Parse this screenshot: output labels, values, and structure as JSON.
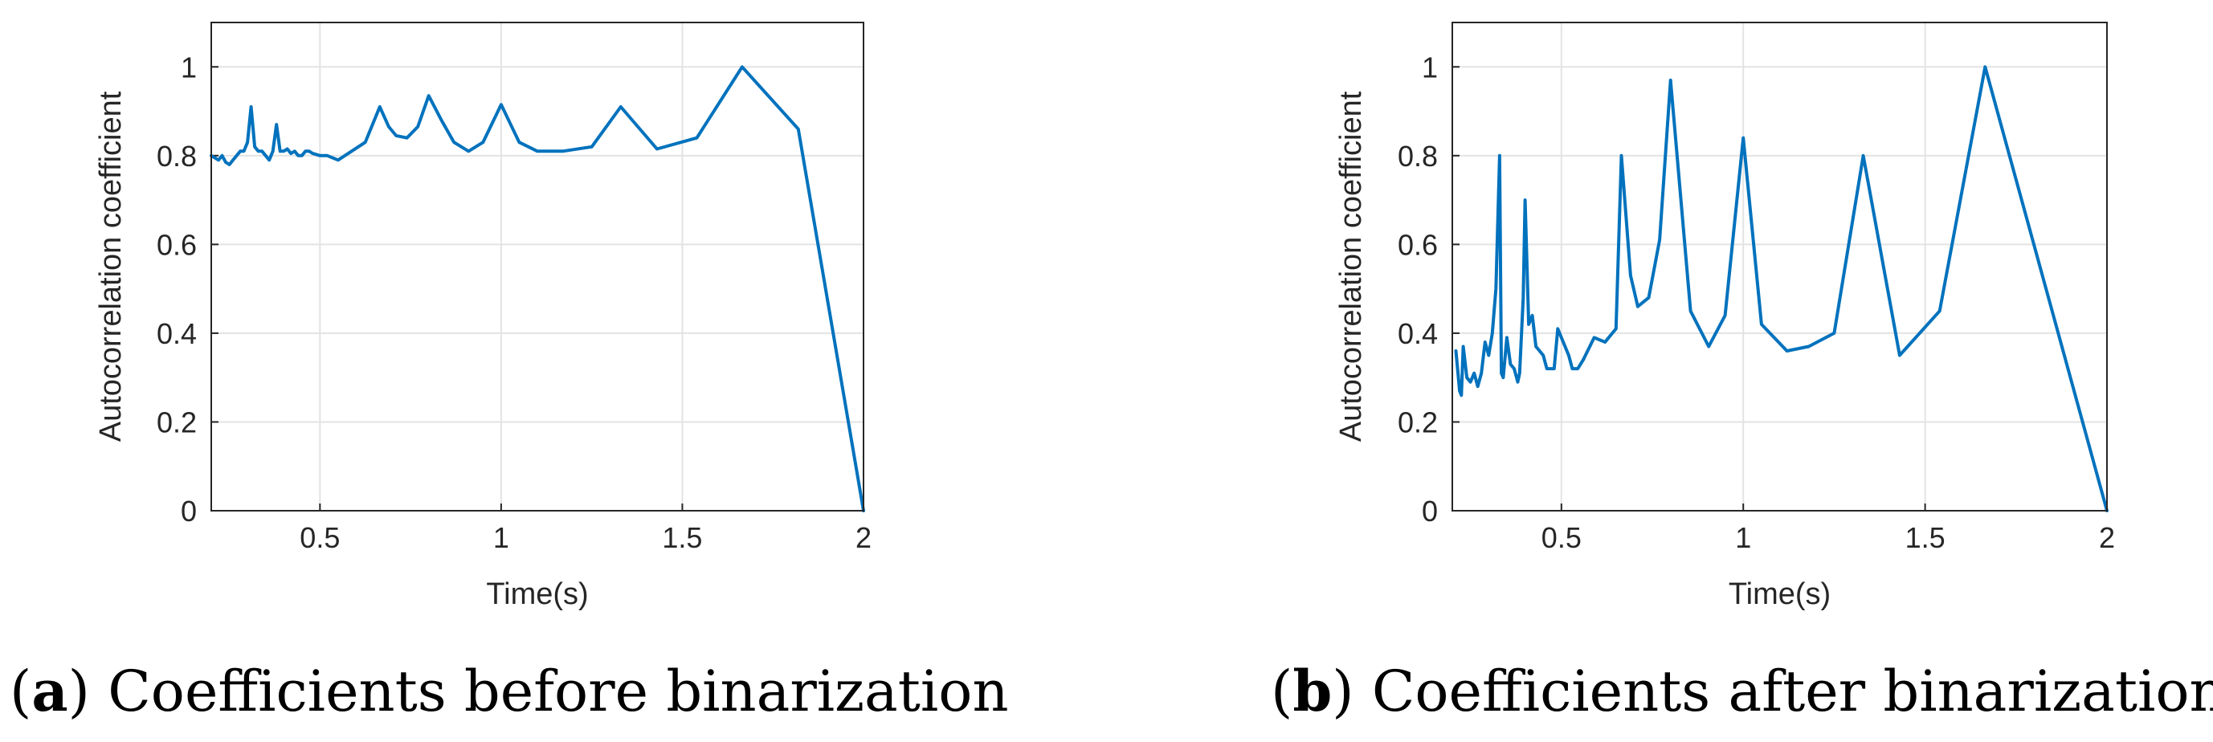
{
  "chart_data": [
    {
      "type": "line",
      "panel_letter": "a",
      "caption": "Coefficients before binarization",
      "xlabel": "Time(s)",
      "ylabel": "Autocorrelation coefficient",
      "xlim": [
        0.2,
        2.0
      ],
      "ylim": [
        0,
        1.1
      ],
      "xticks": [
        0.5,
        1,
        1.5,
        2
      ],
      "xtick_labels": [
        "0.5",
        "1",
        "1.5",
        "2"
      ],
      "yticks": [
        0,
        0.2,
        0.4,
        0.6,
        0.8,
        1
      ],
      "ytick_labels": [
        "0",
        "0.2",
        "0.4",
        "0.6",
        "0.8",
        "1"
      ],
      "grid": true,
      "line_color": "#0072BD",
      "series": [
        {
          "name": "autocorrelation",
          "x": [
            0.2,
            0.22,
            0.23,
            0.24,
            0.25,
            0.26,
            0.27,
            0.28,
            0.29,
            0.3,
            0.31,
            0.32,
            0.33,
            0.34,
            0.35,
            0.36,
            0.37,
            0.38,
            0.39,
            0.4,
            0.41,
            0.42,
            0.43,
            0.44,
            0.45,
            0.46,
            0.47,
            0.48,
            0.5,
            0.52,
            0.55,
            0.625,
            0.665,
            0.69,
            0.71,
            0.74,
            0.77,
            0.8,
            0.835,
            0.87,
            0.91,
            0.95,
            1.0,
            1.05,
            1.1,
            1.17,
            1.25,
            1.33,
            1.43,
            1.54,
            1.665,
            1.82,
            2.0
          ],
          "y": [
            0.8,
            0.79,
            0.8,
            0.785,
            0.78,
            0.79,
            0.8,
            0.81,
            0.81,
            0.83,
            0.91,
            0.82,
            0.81,
            0.81,
            0.8,
            0.79,
            0.81,
            0.87,
            0.81,
            0.81,
            0.815,
            0.805,
            0.81,
            0.8,
            0.8,
            0.81,
            0.81,
            0.805,
            0.8,
            0.8,
            0.79,
            0.83,
            0.91,
            0.865,
            0.845,
            0.84,
            0.865,
            0.935,
            0.88,
            0.83,
            0.81,
            0.83,
            0.915,
            0.83,
            0.81,
            0.81,
            0.82,
            0.91,
            0.815,
            0.84,
            1.0,
            0.86,
            0.0
          ]
        }
      ]
    },
    {
      "type": "line",
      "panel_letter": "b",
      "caption": "Coefficients after binarization",
      "xlabel": "Time(s)",
      "ylabel": "Autocorrelation coefficient",
      "xlim": [
        0.2,
        2.0
      ],
      "ylim": [
        0,
        1.1
      ],
      "xticks": [
        0.5,
        1,
        1.5,
        2
      ],
      "xtick_labels": [
        "0.5",
        "1",
        "1.5",
        "2"
      ],
      "yticks": [
        0,
        0.2,
        0.4,
        0.6,
        0.8,
        1
      ],
      "ytick_labels": [
        "0",
        "0.2",
        "0.4",
        "0.6",
        "0.8",
        "1"
      ],
      "grid": true,
      "line_color": "#0072BD",
      "series": [
        {
          "name": "autocorrelation",
          "x": [
            0.21,
            0.22,
            0.225,
            0.23,
            0.24,
            0.25,
            0.26,
            0.27,
            0.28,
            0.29,
            0.3,
            0.31,
            0.32,
            0.33,
            0.335,
            0.34,
            0.35,
            0.36,
            0.37,
            0.38,
            0.385,
            0.395,
            0.4,
            0.41,
            0.42,
            0.43,
            0.44,
            0.45,
            0.46,
            0.47,
            0.48,
            0.49,
            0.5,
            0.52,
            0.53,
            0.545,
            0.56,
            0.59,
            0.62,
            0.63,
            0.65,
            0.665,
            0.69,
            0.71,
            0.74,
            0.77,
            0.8,
            0.855,
            0.905,
            0.95,
            1.0,
            1.05,
            1.12,
            1.18,
            1.25,
            1.33,
            1.43,
            1.54,
            1.665,
            2.0
          ],
          "y": [
            0.36,
            0.27,
            0.26,
            0.37,
            0.3,
            0.29,
            0.31,
            0.28,
            0.31,
            0.38,
            0.35,
            0.4,
            0.5,
            0.8,
            0.31,
            0.3,
            0.39,
            0.33,
            0.32,
            0.29,
            0.31,
            0.48,
            0.7,
            0.42,
            0.44,
            0.37,
            0.36,
            0.35,
            0.32,
            0.32,
            0.32,
            0.41,
            0.39,
            0.35,
            0.32,
            0.32,
            0.34,
            0.39,
            0.38,
            0.39,
            0.41,
            0.8,
            0.53,
            0.46,
            0.48,
            0.61,
            0.97,
            0.45,
            0.37,
            0.44,
            0.84,
            0.42,
            0.36,
            0.37,
            0.4,
            0.8,
            0.35,
            0.45,
            1.0,
            0.0
          ]
        }
      ]
    }
  ]
}
